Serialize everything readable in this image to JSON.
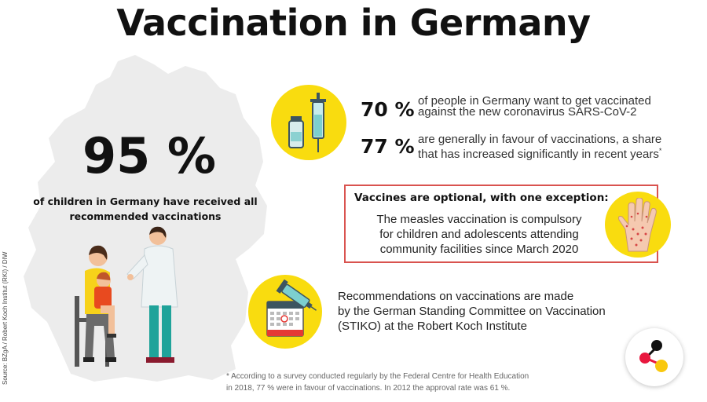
{
  "title": "Vaccination in Germany",
  "children_stat": {
    "value": "95 %",
    "text": "of children in Germany have received all recommended vaccinations"
  },
  "source": "Source: BZgA / Robert Koch Institut (RKI) / DIW",
  "stats": [
    {
      "value": "70 %",
      "text_line1": "of people in Germany want to get vaccinated",
      "text_line2": "against the new coronavirus SARS-CoV-2",
      "marker": ""
    },
    {
      "value": "77 %",
      "text_line1": "are generally in favour of vaccinations, a share",
      "text_line2": "that has increased significantly in recent years",
      "marker": "*"
    }
  ],
  "measles_box": {
    "title": "Vaccines are optional, with one exception:",
    "line1": "The measles vaccination is compulsory",
    "line2": "for children and adolescents attending",
    "line3": "community facilities since March 2020"
  },
  "recommendations": {
    "line1": "Recommendations on vaccinations are made",
    "line2": "by the German Standing Committee on Vaccination",
    "line3": "(STIKO) at the Robert Koch Institute"
  },
  "footnote": {
    "line1": "* According to a survey conducted regularly by the Federal Centre for Health Education",
    "line2": "in 2018, 77 % were in favour of vaccinations. In 2012 the approval rate was 61 %."
  },
  "icons": {
    "syringe": "syringe-vial-icon",
    "hand": "measles-hand-icon",
    "calendar": "calendar-syringe-icon",
    "logo": "brand-logo-icon"
  },
  "colors": {
    "accent_yellow": "#f9dc0f",
    "box_border": "#d9534f",
    "map_gray": "#ececec"
  }
}
